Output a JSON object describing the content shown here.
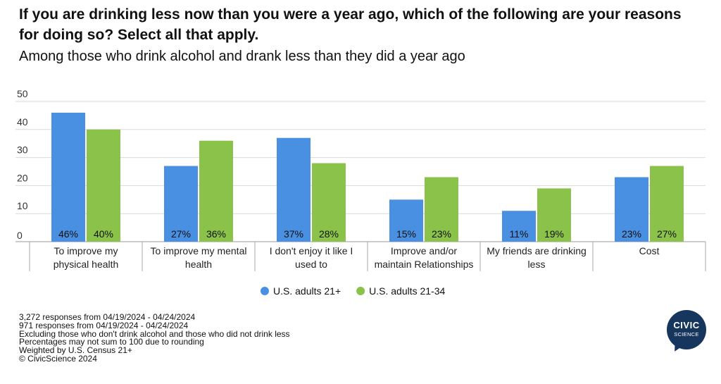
{
  "header": {
    "title": "If you are drinking less now than you were a year ago, which of the following are your reasons for doing so? Select all that apply.",
    "subtitle": "Among those who drink alcohol and drank less than they did a year ago"
  },
  "chart_data": {
    "type": "bar",
    "categories": [
      [
        "To improve my",
        "physical health"
      ],
      [
        "To improve my mental",
        "health"
      ],
      [
        "I don't enjoy it like I",
        "used to"
      ],
      [
        "Improve and/or",
        "maintain Relationships"
      ],
      [
        "My friends are drinking",
        "less"
      ],
      [
        "Cost"
      ]
    ],
    "series": [
      {
        "name": "U.S. adults 21+",
        "color": "#4a90e2",
        "values": [
          46,
          27,
          37,
          15,
          11,
          23
        ],
        "labels": [
          "46%",
          "27%",
          "37%",
          "15%",
          "11%",
          "23%"
        ]
      },
      {
        "name": "U.S. adults 21-34",
        "color": "#8bc34a",
        "values": [
          40,
          36,
          28,
          23,
          19,
          27
        ],
        "labels": [
          "40%",
          "36%",
          "28%",
          "23%",
          "19%",
          "27%"
        ]
      }
    ],
    "yticks": [
      0,
      10,
      20,
      30,
      40,
      50
    ],
    "ylim": [
      0,
      50
    ],
    "grid": true,
    "legend": "bottom-center"
  },
  "footnotes": [
    "3,272 responses from 04/19/2024 - 04/24/2024",
    "971 responses from 04/19/2024 - 04/24/2024",
    "Excluding those who don't drink alcohol and those who did not drink less",
    "Percentages may not sum to 100 due to rounding",
    "Weighted by U.S. Census 21+",
    "© CivicScience 2024"
  ],
  "logo": {
    "line1": "CIVIC",
    "line2": "SCIENCE"
  }
}
